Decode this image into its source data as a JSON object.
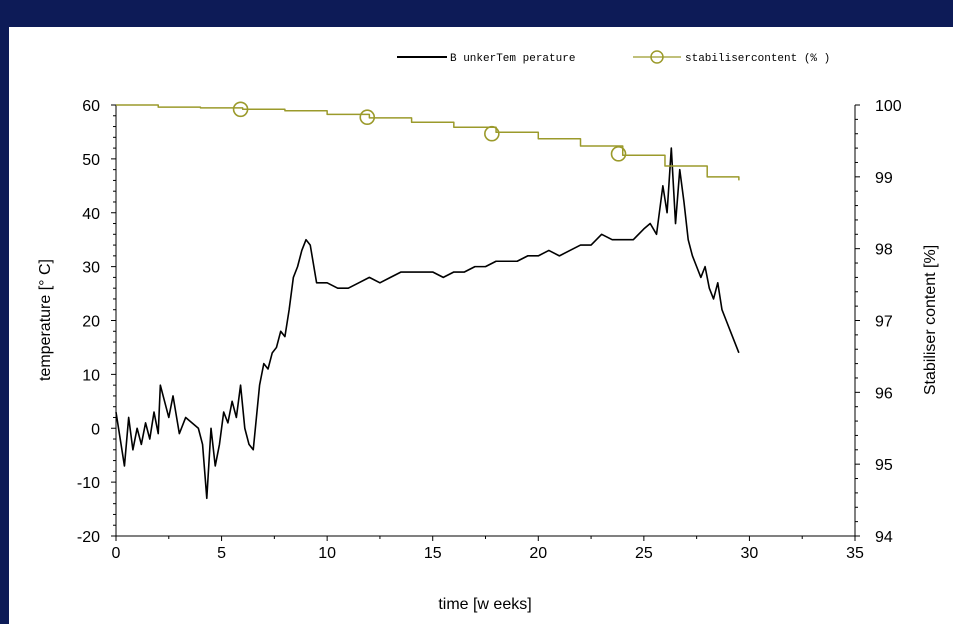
{
  "chart_data": {
    "type": "line",
    "xlabel": "time  [w eeks]",
    "ylabel_left": "temperature [° C]",
    "ylabel_right": "Stabiliser content [%]",
    "xlim": [
      0,
      35
    ],
    "ylim_left": [
      -20,
      60
    ],
    "ylim_right": [
      94,
      100
    ],
    "x_ticks": [
      0,
      5,
      10,
      15,
      20,
      25,
      30,
      35
    ],
    "y_left_ticks": [
      -20,
      -10,
      0,
      10,
      20,
      30,
      40,
      50,
      60
    ],
    "y_right_ticks": [
      94,
      95,
      96,
      97,
      98,
      99,
      100
    ],
    "grid": false,
    "legend_position": "top-right",
    "series": [
      {
        "name": "B unkerTem perature",
        "axis": "left",
        "color": "#000000",
        "x": [
          0,
          0.2,
          0.4,
          0.6,
          0.8,
          1.0,
          1.2,
          1.4,
          1.6,
          1.8,
          2.0,
          2.1,
          2.3,
          2.5,
          2.7,
          3.0,
          3.3,
          3.6,
          3.9,
          4.1,
          4.3,
          4.5,
          4.7,
          4.9,
          5.1,
          5.3,
          5.5,
          5.7,
          5.9,
          6.1,
          6.3,
          6.5,
          6.8,
          7.0,
          7.2,
          7.4,
          7.6,
          7.8,
          8.0,
          8.2,
          8.4,
          8.6,
          8.8,
          9.0,
          9.2,
          9.5,
          10.0,
          10.5,
          11.0,
          11.5,
          12.0,
          12.5,
          13.0,
          13.5,
          14.0,
          14.5,
          15.0,
          15.5,
          16.0,
          16.5,
          17.0,
          17.5,
          18.0,
          18.5,
          19.0,
          19.5,
          20.0,
          20.5,
          21.0,
          21.5,
          22.0,
          22.5,
          23.0,
          23.5,
          24.0,
          24.5,
          25.0,
          25.3,
          25.6,
          25.9,
          26.1,
          26.3,
          26.5,
          26.7,
          26.9,
          27.1,
          27.3,
          27.5,
          27.7,
          27.9,
          28.1,
          28.3,
          28.5,
          28.7,
          28.9,
          29.1,
          29.3,
          29.5
        ],
        "values": [
          3,
          -2,
          -7,
          2,
          -4,
          0,
          -3,
          1,
          -2,
          3,
          -1,
          8,
          5,
          2,
          6,
          -1,
          2,
          1,
          0,
          -3,
          -13,
          0,
          -7,
          -3,
          3,
          1,
          5,
          2,
          8,
          0,
          -3,
          -4,
          8,
          12,
          11,
          14,
          15,
          18,
          17,
          22,
          28,
          30,
          33,
          35,
          34,
          27,
          27,
          26,
          26,
          27,
          28,
          27,
          28,
          29,
          29,
          29,
          29,
          28,
          29,
          29,
          30,
          30,
          31,
          31,
          31,
          32,
          32,
          33,
          32,
          33,
          34,
          34,
          36,
          35,
          35,
          35,
          37,
          38,
          36,
          45,
          40,
          52,
          38,
          48,
          42,
          35,
          32,
          30,
          28,
          30,
          26,
          24,
          27,
          22,
          20,
          18,
          16,
          14
        ]
      },
      {
        "name": "stabilisercontent (% )",
        "axis": "right",
        "color": "#9b9a2b",
        "x": [
          0,
          2,
          4,
          6,
          8,
          10,
          12,
          14,
          16,
          18,
          20,
          22,
          24,
          26,
          28,
          29.5
        ],
        "values": [
          100,
          99.97,
          99.96,
          99.94,
          99.92,
          99.87,
          99.82,
          99.76,
          99.69,
          99.62,
          99.53,
          99.43,
          99.3,
          99.15,
          99.0,
          98.95
        ]
      }
    ],
    "markers": {
      "series": "stabilisercontent (% )",
      "x": [
        5.9,
        11.9,
        17.8,
        23.8
      ],
      "values": [
        99.94,
        99.83,
        99.6,
        99.32
      ]
    }
  }
}
